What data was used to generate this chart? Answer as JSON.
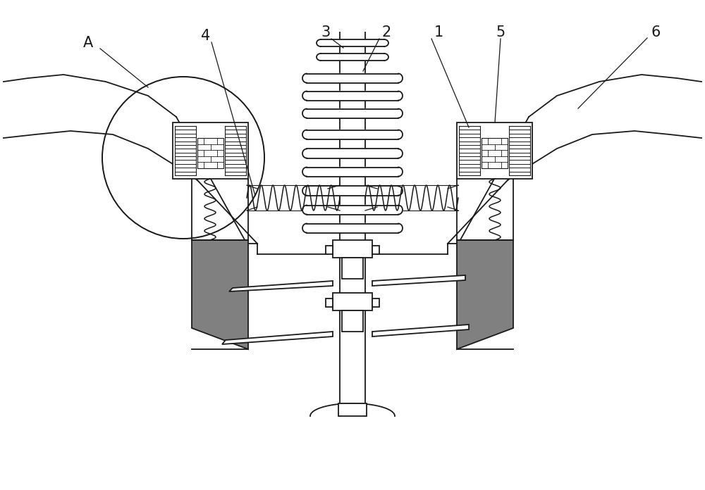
{
  "bg_color": "#ffffff",
  "line_color": "#1a1a1a",
  "fig_width": 10.0,
  "fig_height": 6.96,
  "label_fontsize": 15
}
